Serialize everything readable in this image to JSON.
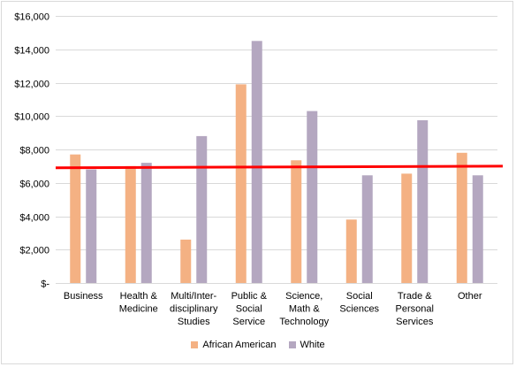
{
  "chart_data": {
    "type": "bar",
    "title": "",
    "xlabel": "",
    "ylabel": "",
    "ylim": [
      0,
      16000
    ],
    "y_ticks": [
      0,
      2000,
      4000,
      6000,
      8000,
      10000,
      12000,
      14000,
      16000
    ],
    "y_tick_labels": [
      "$-",
      "$2,000",
      "$4,000",
      "$6,000",
      "$8,000",
      "$10,000",
      "$12,000",
      "$14,000",
      "$16,000"
    ],
    "categories": [
      [
        "Business"
      ],
      [
        "Health &",
        "Medicine"
      ],
      [
        "Multi/Inter-",
        "disciplinary",
        "Studies"
      ],
      [
        "Public &",
        "Social",
        "Service"
      ],
      [
        "Science,",
        "Math &",
        "Technology"
      ],
      [
        "Social",
        "Sciences"
      ],
      [
        "Trade &",
        "Personal",
        "Services"
      ],
      [
        "Other"
      ]
    ],
    "series": [
      {
        "name": "African American",
        "color": "#F4B183",
        "values": [
          7700,
          7000,
          2600,
          11900,
          7350,
          3800,
          6550,
          7800
        ]
      },
      {
        "name": "White",
        "color": "#B4A7C0",
        "values": [
          6800,
          7200,
          8800,
          14500,
          10300,
          6450,
          9750,
          6450
        ]
      }
    ],
    "reference_line": {
      "color": "#FF0000",
      "start_value": 6900,
      "end_value": 7000
    },
    "grid": "horizontal",
    "legend_position": "bottom"
  }
}
